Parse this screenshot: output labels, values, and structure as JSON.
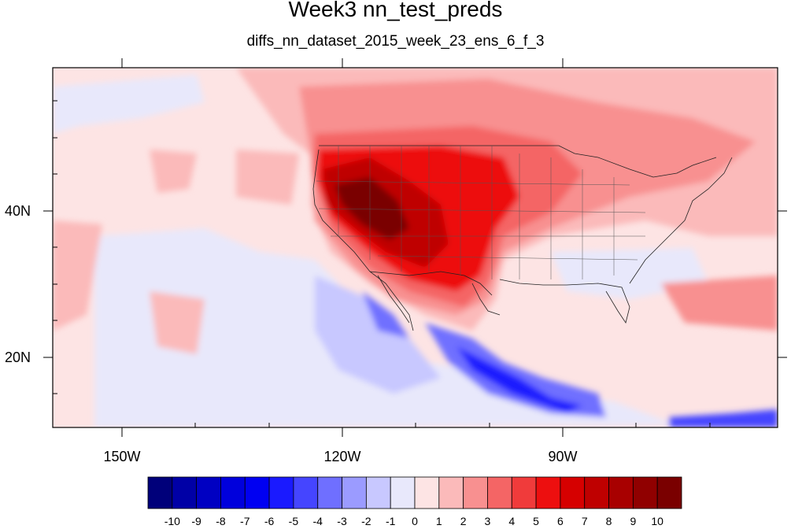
{
  "title": "Week3 nn_test_preds",
  "subtitle": "diffs_nn_dataset_2015_week_23_ens_6_f_3",
  "lat_labels": [
    "40N",
    "20N"
  ],
  "lon_labels": [
    "150W",
    "120W",
    "90W"
  ],
  "colorbar": {
    "labels": [
      "-10",
      "-9",
      "-8",
      "-7",
      "-6",
      "-5",
      "-4",
      "-3",
      "-2",
      "-1",
      "0",
      "1",
      "2",
      "3",
      "4",
      "5",
      "6",
      "7",
      "8",
      "9",
      "10"
    ],
    "colors": [
      "#00007a",
      "#0000a6",
      "#0000c2",
      "#0000dc",
      "#0000f2",
      "#1a1aff",
      "#4545ff",
      "#6f6fff",
      "#9b9bff",
      "#c8c8ff",
      "#e8e8fb",
      "#fde4e4",
      "#fbbaba",
      "#f89090",
      "#f46565",
      "#f03b3b",
      "#ed0f0f",
      "#d60000",
      "#bf0000",
      "#a80000",
      "#900000",
      "#7a0000"
    ]
  },
  "map": {
    "region": "North America / Eastern Pacific",
    "background_anomaly_color": "#fde4e4"
  }
}
